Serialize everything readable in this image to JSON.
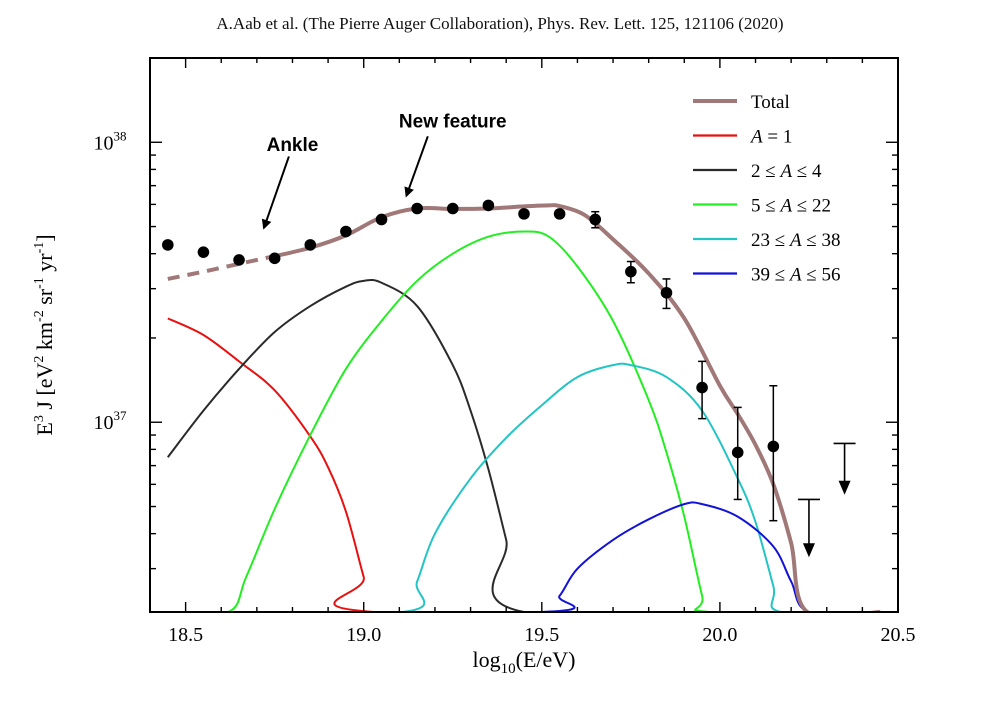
{
  "citation": "A.Aab et al. (The Pierre Auger Collaboration), Phys. Rev. Lett. 125, 121106 (2020)",
  "chart_data": {
    "type": "line",
    "title": "",
    "xlabel": "log10(E/eV)",
    "ylabel": "E3 J [eV2 km-2 sr-1 yr-1]",
    "xlim": [
      18.4,
      20.5
    ],
    "ylim": [
      2.1e+36,
      2e+38
    ],
    "yscale": "log",
    "grid": false,
    "legend_position": "top-right",
    "x_ticks": [
      {
        "value": 18.5,
        "label": "18.5"
      },
      {
        "value": 19.0,
        "label": "19.0"
      },
      {
        "value": 19.5,
        "label": "19.5"
      },
      {
        "value": 20.0,
        "label": "20.0"
      },
      {
        "value": 20.5,
        "label": "20.5"
      }
    ],
    "y_ticks": [
      {
        "value": 1e+37,
        "base": "10",
        "exp": "37"
      },
      {
        "value": 1e+38,
        "base": "10",
        "exp": "38"
      }
    ],
    "y_minor_ticks": [
      3e+36,
      4e+36,
      5e+36,
      6e+36,
      7e+36,
      8e+36,
      9e+36,
      2e+37,
      3e+37,
      4e+37,
      5e+37,
      6e+37,
      7e+37,
      8e+37,
      9e+37,
      2e+38
    ],
    "series": [
      {
        "name": "Total",
        "color": "#A07878",
        "width": 4,
        "dashed_until": 18.75,
        "points": [
          [
            18.45,
            3.25e+37
          ],
          [
            18.55,
            3.45e+37
          ],
          [
            18.65,
            3.68e+37
          ],
          [
            18.75,
            3.92e+37
          ],
          [
            18.85,
            4.2e+37
          ],
          [
            18.95,
            4.65e+37
          ],
          [
            19.05,
            5.4e+37
          ],
          [
            19.15,
            5.8e+37
          ],
          [
            19.25,
            5.78e+37
          ],
          [
            19.35,
            5.8e+37
          ],
          [
            19.45,
            5.9e+37
          ],
          [
            19.52,
            5.95e+37
          ],
          [
            19.55,
            5.92e+37
          ],
          [
            19.62,
            5.5e+37
          ],
          [
            19.7,
            4.5e+37
          ],
          [
            19.8,
            3.4e+37
          ],
          [
            19.9,
            2.35e+37
          ],
          [
            20.0,
            1.35e+37
          ],
          [
            20.05,
            1.07e+37
          ],
          [
            20.1,
            8.3e+36
          ],
          [
            20.15,
            6e+36
          ],
          [
            20.2,
            3.7e+36
          ],
          [
            20.245,
            2.1e+36
          ],
          [
            20.45,
            2.1e+36
          ]
        ]
      },
      {
        "name": "A = 1",
        "color": "#E81010",
        "width": 2,
        "points": [
          [
            18.45,
            2.35e+37
          ],
          [
            18.55,
            2.05e+37
          ],
          [
            18.65,
            1.65e+37
          ],
          [
            18.75,
            1.3e+37
          ],
          [
            18.85,
            8.9e+36
          ],
          [
            18.9,
            6.9e+36
          ],
          [
            18.95,
            4.8e+36
          ],
          [
            19.0,
            2.8e+36
          ],
          [
            19.03,
            2.1e+36
          ],
          [
            20.45,
            2.1e+36
          ]
        ]
      },
      {
        "name": "2 ≤ A ≤ 4",
        "color": "#2A2A2A",
        "width": 2,
        "points": [
          [
            18.45,
            7.5e+36
          ],
          [
            18.55,
            1.1e+37
          ],
          [
            18.65,
            1.55e+37
          ],
          [
            18.75,
            2.1e+37
          ],
          [
            18.85,
            2.6e+37
          ],
          [
            18.95,
            3.05e+37
          ],
          [
            19.0,
            3.2e+37
          ],
          [
            19.05,
            3.15e+37
          ],
          [
            19.15,
            2.6e+37
          ],
          [
            19.25,
            1.6e+37
          ],
          [
            19.3,
            1.1e+37
          ],
          [
            19.35,
            6.8e+36
          ],
          [
            19.4,
            3.8e+36
          ],
          [
            19.45,
            2.1e+36
          ],
          [
            20.45,
            2.1e+36
          ]
        ]
      },
      {
        "name": "5 ≤ A ≤ 22",
        "color": "#22EE22",
        "width": 2,
        "points": [
          [
            18.45,
            2.1e+36
          ],
          [
            18.62,
            2.1e+36
          ],
          [
            18.67,
            2.8e+36
          ],
          [
            18.75,
            4.9e+36
          ],
          [
            18.85,
            9e+36
          ],
          [
            18.95,
            1.55e+37
          ],
          [
            19.05,
            2.3e+37
          ],
          [
            19.15,
            3.2e+37
          ],
          [
            19.25,
            4e+37
          ],
          [
            19.35,
            4.6e+37
          ],
          [
            19.45,
            4.8e+37
          ],
          [
            19.52,
            4.6e+37
          ],
          [
            19.6,
            3.6e+37
          ],
          [
            19.7,
            2.3e+37
          ],
          [
            19.8,
            1.2e+37
          ],
          [
            19.85,
            7.8e+36
          ],
          [
            19.9,
            4.6e+36
          ],
          [
            19.95,
            2.4e+36
          ],
          [
            19.97,
            2.1e+36
          ],
          [
            20.45,
            2.1e+36
          ]
        ]
      },
      {
        "name": "23 ≤ A ≤ 38",
        "color": "#22C4C4",
        "width": 2,
        "points": [
          [
            18.45,
            2.1e+36
          ],
          [
            19.11,
            2.1e+36
          ],
          [
            19.15,
            2.7e+36
          ],
          [
            19.2,
            4e+36
          ],
          [
            19.3,
            6.3e+36
          ],
          [
            19.4,
            8.8e+36
          ],
          [
            19.5,
            1.15e+37
          ],
          [
            19.6,
            1.45e+37
          ],
          [
            19.7,
            1.6e+37
          ],
          [
            19.75,
            1.6e+37
          ],
          [
            19.85,
            1.45e+37
          ],
          [
            19.95,
            1.1e+37
          ],
          [
            20.05,
            6.3e+36
          ],
          [
            20.1,
            4.4e+36
          ],
          [
            20.15,
            2.6e+36
          ],
          [
            20.17,
            2.1e+36
          ],
          [
            20.45,
            2.1e+36
          ]
        ]
      },
      {
        "name": "39 ≤ A ≤ 56",
        "color": "#1212D8",
        "width": 2,
        "points": [
          [
            18.45,
            2.1e+36
          ],
          [
            19.5,
            2.1e+36
          ],
          [
            19.55,
            2.4e+36
          ],
          [
            19.6,
            3e+36
          ],
          [
            19.7,
            3.8e+36
          ],
          [
            19.8,
            4.5e+36
          ],
          [
            19.9,
            5.1e+36
          ],
          [
            19.95,
            5.1e+36
          ],
          [
            20.05,
            4.6e+36
          ],
          [
            20.15,
            3.6e+36
          ],
          [
            20.2,
            2.7e+36
          ],
          [
            20.25,
            2.1e+36
          ],
          [
            20.45,
            2.1e+36
          ]
        ]
      }
    ],
    "data_points": [
      {
        "x": 18.45,
        "y": 4.3e+37
      },
      {
        "x": 18.55,
        "y": 4.05e+37
      },
      {
        "x": 18.65,
        "y": 3.8e+37
      },
      {
        "x": 18.75,
        "y": 3.85e+37
      },
      {
        "x": 18.85,
        "y": 4.3e+37
      },
      {
        "x": 18.95,
        "y": 4.8e+37
      },
      {
        "x": 19.05,
        "y": 5.3e+37
      },
      {
        "x": 19.15,
        "y": 5.8e+37
      },
      {
        "x": 19.25,
        "y": 5.8e+37
      },
      {
        "x": 19.35,
        "y": 5.95e+37
      },
      {
        "x": 19.45,
        "y": 5.55e+37
      },
      {
        "x": 19.55,
        "y": 5.55e+37
      },
      {
        "x": 19.65,
        "y": 5.3e+37,
        "err_low": 4.95e+37,
        "err_high": 5.65e+37
      },
      {
        "x": 19.75,
        "y": 3.45e+37,
        "err_low": 3.15e+37,
        "err_high": 3.75e+37
      },
      {
        "x": 19.85,
        "y": 2.9e+37,
        "err_low": 2.55e+37,
        "err_high": 3.25e+37
      },
      {
        "x": 19.95,
        "y": 1.33e+37,
        "err_low": 1.03e+37,
        "err_high": 1.65e+37
      },
      {
        "x": 20.05,
        "y": 7.8e+36,
        "err_low": 5.3e+36,
        "err_high": 1.13e+37
      },
      {
        "x": 20.15,
        "y": 8.2e+36,
        "err_low": 4.45e+36,
        "err_high": 1.35e+37
      }
    ],
    "upper_limits": [
      {
        "x": 20.25,
        "y": 5.3e+36,
        "arrow_to": 3.35e+36
      },
      {
        "x": 20.35,
        "y": 8.4e+36,
        "arrow_to": 5.6e+36
      }
    ],
    "annotations": [
      {
        "text": "Ankle",
        "text_x": 18.8,
        "text_y": 9.3e+37,
        "arrow_from": [
          18.79,
          8.9e+37
        ],
        "arrow_to": [
          18.72,
          4.95e+37
        ]
      },
      {
        "text": "New feature",
        "text_x": 19.25,
        "text_y": 1.13e+38,
        "arrow_from": [
          19.18,
          1.05e+38
        ],
        "arrow_to": [
          19.12,
          6.45e+37
        ]
      }
    ]
  }
}
